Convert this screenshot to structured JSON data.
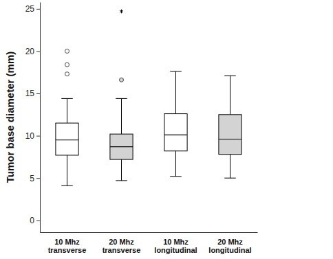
{
  "chart_data": {
    "type": "box",
    "y_label": "Tumor base diameter (mm)",
    "categories": [
      "10 Mhz\ntransverse",
      "20 Mhz\ntransverse",
      "10 Mhz\nlongitudinal",
      "20 Mhz\nlongitudinal"
    ],
    "colors": [
      "#ffffff",
      "#d3d3d3",
      "#ffffff",
      "#d3d3d3"
    ],
    "boxes": [
      {
        "whisker_low": 4.1,
        "q1": 7.7,
        "median": 9.5,
        "q3": 11.5,
        "whisker_high": 14.4,
        "outliers": [
          17.3,
          18.4,
          20.0
        ],
        "extremes": []
      },
      {
        "whisker_low": 4.7,
        "q1": 7.2,
        "median": 8.7,
        "q3": 10.2,
        "whisker_high": 14.4,
        "outliers": [
          16.6
        ],
        "extremes": [
          24.7
        ]
      },
      {
        "whisker_low": 5.2,
        "q1": 8.2,
        "median": 10.1,
        "q3": 12.6,
        "whisker_high": 17.6,
        "outliers": [],
        "extremes": []
      },
      {
        "whisker_low": 5.0,
        "q1": 7.8,
        "median": 9.6,
        "q3": 12.5,
        "whisker_high": 17.1,
        "outliers": [],
        "extremes": []
      }
    ],
    "ylim": [
      -1.4,
      25.8
    ],
    "yticks": [
      0,
      5,
      10,
      15,
      20,
      25
    ]
  }
}
